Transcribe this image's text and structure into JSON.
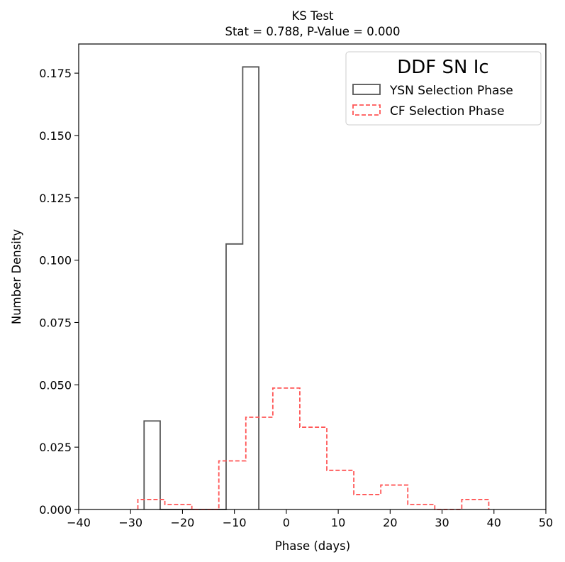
{
  "chart_data": {
    "type": "histogram",
    "title_lines": [
      "KS Test",
      "Stat = 0.788, P-Value = 0.000"
    ],
    "xlabel": "Phase (days)",
    "ylabel": "Number Density",
    "xlim": [
      -40,
      50
    ],
    "ylim": [
      0,
      0.1867
    ],
    "xticks": [
      -40,
      -30,
      -20,
      -10,
      0,
      10,
      20,
      30,
      40,
      50
    ],
    "xtick_labels": [
      "−40",
      "−30",
      "−20",
      "−10",
      "0",
      "10",
      "20",
      "30",
      "40",
      "50"
    ],
    "yticks": [
      0,
      0.025,
      0.05,
      0.075,
      0.1,
      0.125,
      0.15,
      0.175
    ],
    "ytick_labels": [
      "0.000",
      "0.025",
      "0.050",
      "0.075",
      "0.100",
      "0.125",
      "0.150",
      "0.175"
    ],
    "grid": false,
    "legend": {
      "title": "DDF SN Ic",
      "placement": "top-right",
      "entries": [
        "YSN Selection Phase",
        "CF Selection Phase"
      ]
    },
    "series": [
      {
        "name": "YSN Selection Phase",
        "color": "#555555",
        "linestyle": "solid",
        "bin_edges": [
          -27.4,
          -24.3,
          -21.1,
          -17.9,
          -14.8,
          -11.6,
          -8.4,
          -5.3
        ],
        "values": [
          0.0355,
          0,
          0,
          0,
          0,
          0.1065,
          0.1775
        ]
      },
      {
        "name": "CF Selection Phase",
        "color": "#ff5555",
        "linestyle": "dashed",
        "bin_edges": [
          -28.6,
          -23.4,
          -18.2,
          -13.0,
          -7.8,
          -2.6,
          2.6,
          7.8,
          13.0,
          18.2,
          23.4,
          28.6,
          33.8,
          39.0
        ],
        "values": [
          0.004,
          0.002,
          0,
          0.0195,
          0.037,
          0.0487,
          0.033,
          0.0157,
          0.006,
          0.0098,
          0.002,
          0,
          0.004
        ]
      }
    ]
  }
}
